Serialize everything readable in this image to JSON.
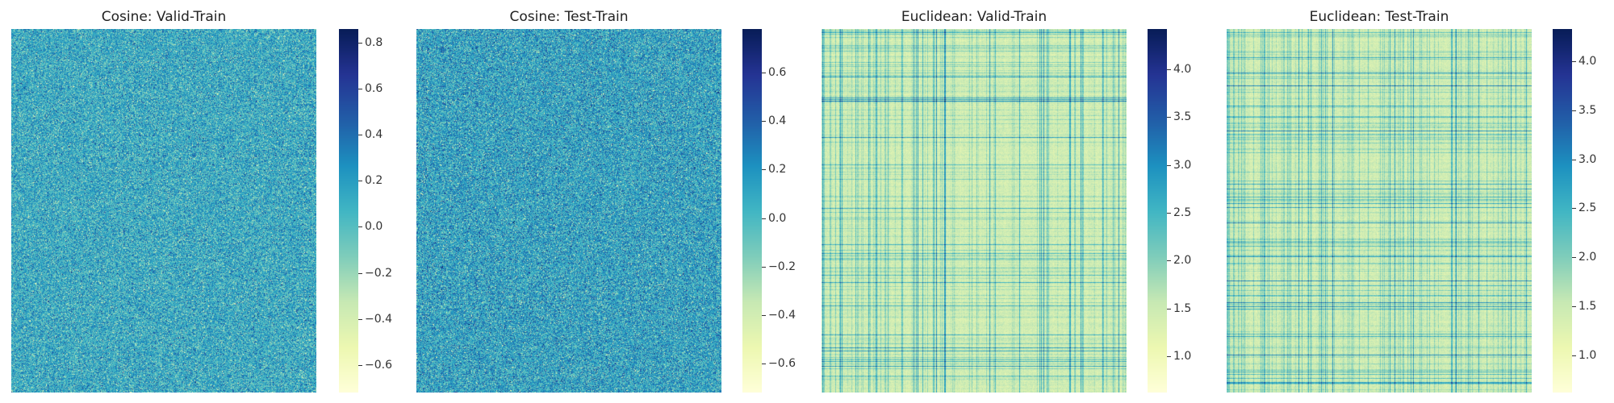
{
  "colormap": {
    "name": "YlGnBu",
    "stops": [
      "#ffffd9",
      "#edf8b1",
      "#c7e9b4",
      "#7fcdbb",
      "#41b6c4",
      "#1d91c0",
      "#225ea8",
      "#253494",
      "#081d58"
    ]
  },
  "chart_data": [
    {
      "type": "heatmap",
      "title": "Cosine: Valid-Train",
      "metric": "cosine",
      "value_range": [
        -0.72,
        0.86
      ],
      "colorbar_ticks": [
        0.8,
        0.6,
        0.4,
        0.2,
        0.0,
        -0.2,
        -0.4,
        -0.6
      ],
      "colorbar_tick_labels": [
        "0.8",
        "0.6",
        "0.4",
        "0.2",
        "0.0",
        "−0.2",
        "−0.4",
        "−0.6"
      ],
      "xlabel": "",
      "ylabel": "",
      "seed": 11
    },
    {
      "type": "heatmap",
      "title": "Cosine: Test-Train",
      "metric": "cosine",
      "value_range": [
        -0.72,
        0.78
      ],
      "colorbar_ticks": [
        0.6,
        0.4,
        0.2,
        0.0,
        -0.2,
        -0.4,
        -0.6
      ],
      "colorbar_tick_labels": [
        "0.6",
        "0.4",
        "0.2",
        "0.0",
        "−0.2",
        "−0.4",
        "−0.6"
      ],
      "xlabel": "",
      "ylabel": "",
      "seed": 23
    },
    {
      "type": "heatmap",
      "title": "Euclidean: Valid-Train",
      "metric": "euclidean",
      "value_range": [
        0.62,
        4.42
      ],
      "colorbar_ticks": [
        4.0,
        3.5,
        3.0,
        2.5,
        2.0,
        1.5,
        1.0
      ],
      "colorbar_tick_labels": [
        "4.0",
        "3.5",
        "3.0",
        "2.5",
        "2.0",
        "1.5",
        "1.0"
      ],
      "xlabel": "",
      "ylabel": "",
      "seed": 37
    },
    {
      "type": "heatmap",
      "title": "Euclidean: Test-Train",
      "metric": "euclidean",
      "value_range": [
        0.62,
        4.33
      ],
      "colorbar_ticks": [
        4.0,
        3.5,
        3.0,
        2.5,
        2.0,
        1.5,
        1.0
      ],
      "colorbar_tick_labels": [
        "4.0",
        "3.5",
        "3.0",
        "2.5",
        "2.0",
        "1.5",
        "1.0"
      ],
      "xlabel": "",
      "ylabel": "",
      "seed": 53
    }
  ]
}
